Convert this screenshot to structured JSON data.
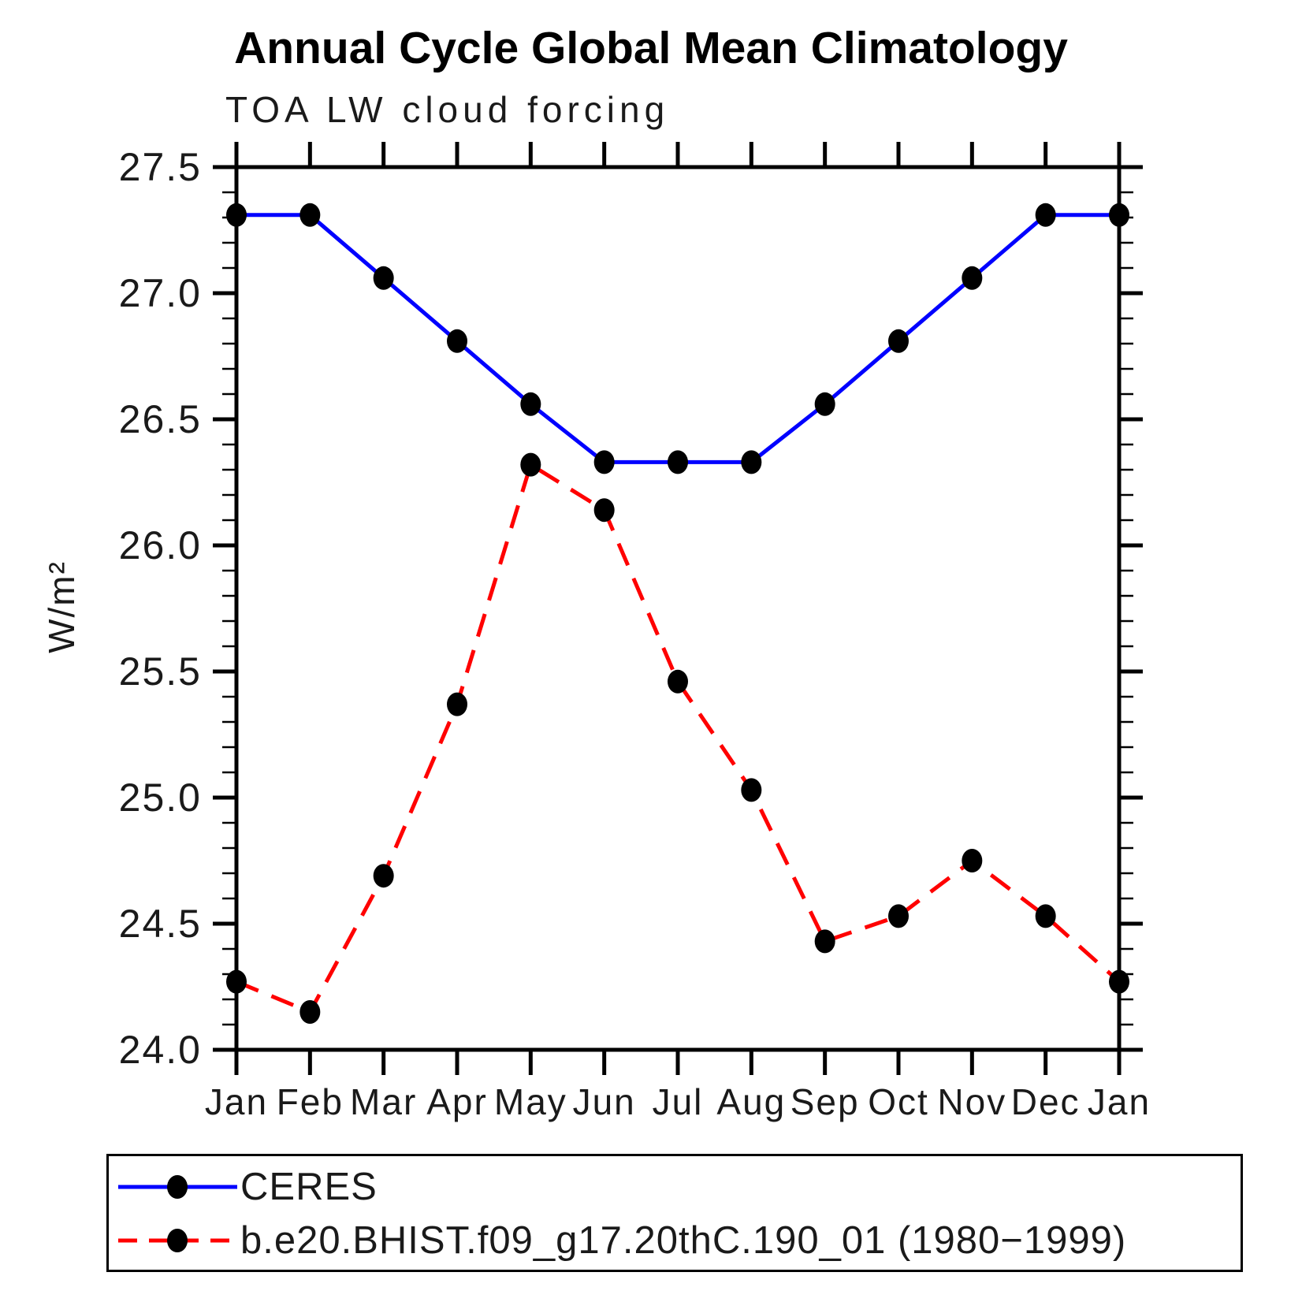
{
  "title": "Annual Cycle Global Mean Climatology",
  "subtitle": "TOA LW cloud forcing",
  "ylabel": "W/m²",
  "legend": {
    "items": [
      {
        "label": "CERES",
        "color": "#0000ff",
        "style": "solid"
      },
      {
        "label": "b.e20.BHIST.f09_g17.20thC.190_01 (1980−1999)",
        "color": "#ff0000",
        "style": "dashed"
      }
    ]
  },
  "chart_data": {
    "type": "line",
    "title": "Annual Cycle Global Mean Climatology",
    "subtitle": "TOA LW cloud forcing",
    "xlabel": "",
    "ylabel": "W/m²",
    "categories": [
      "Jan",
      "Feb",
      "Mar",
      "Apr",
      "May",
      "Jun",
      "Jul",
      "Aug",
      "Sep",
      "Oct",
      "Nov",
      "Dec",
      "Jan"
    ],
    "series": [
      {
        "name": "CERES",
        "color": "#0000ff",
        "style": "solid",
        "values": [
          27.31,
          27.31,
          27.06,
          26.81,
          26.56,
          26.33,
          26.33,
          26.33,
          26.56,
          26.81,
          27.06,
          27.31,
          27.31
        ]
      },
      {
        "name": "b.e20.BHIST.f09_g17.20thC.190_01 (1980−1999)",
        "color": "#ff0000",
        "style": "dashed",
        "values": [
          24.27,
          24.15,
          24.69,
          25.37,
          26.32,
          26.14,
          25.46,
          25.03,
          24.43,
          24.53,
          24.75,
          24.53,
          24.27
        ]
      }
    ],
    "ylim": [
      24.0,
      27.5
    ],
    "ytick_major": 0.5,
    "ytick_minor": 0.1,
    "grid": false,
    "marker": "filled-circle",
    "marker_color": "#000000",
    "legend_position": "bottom"
  }
}
